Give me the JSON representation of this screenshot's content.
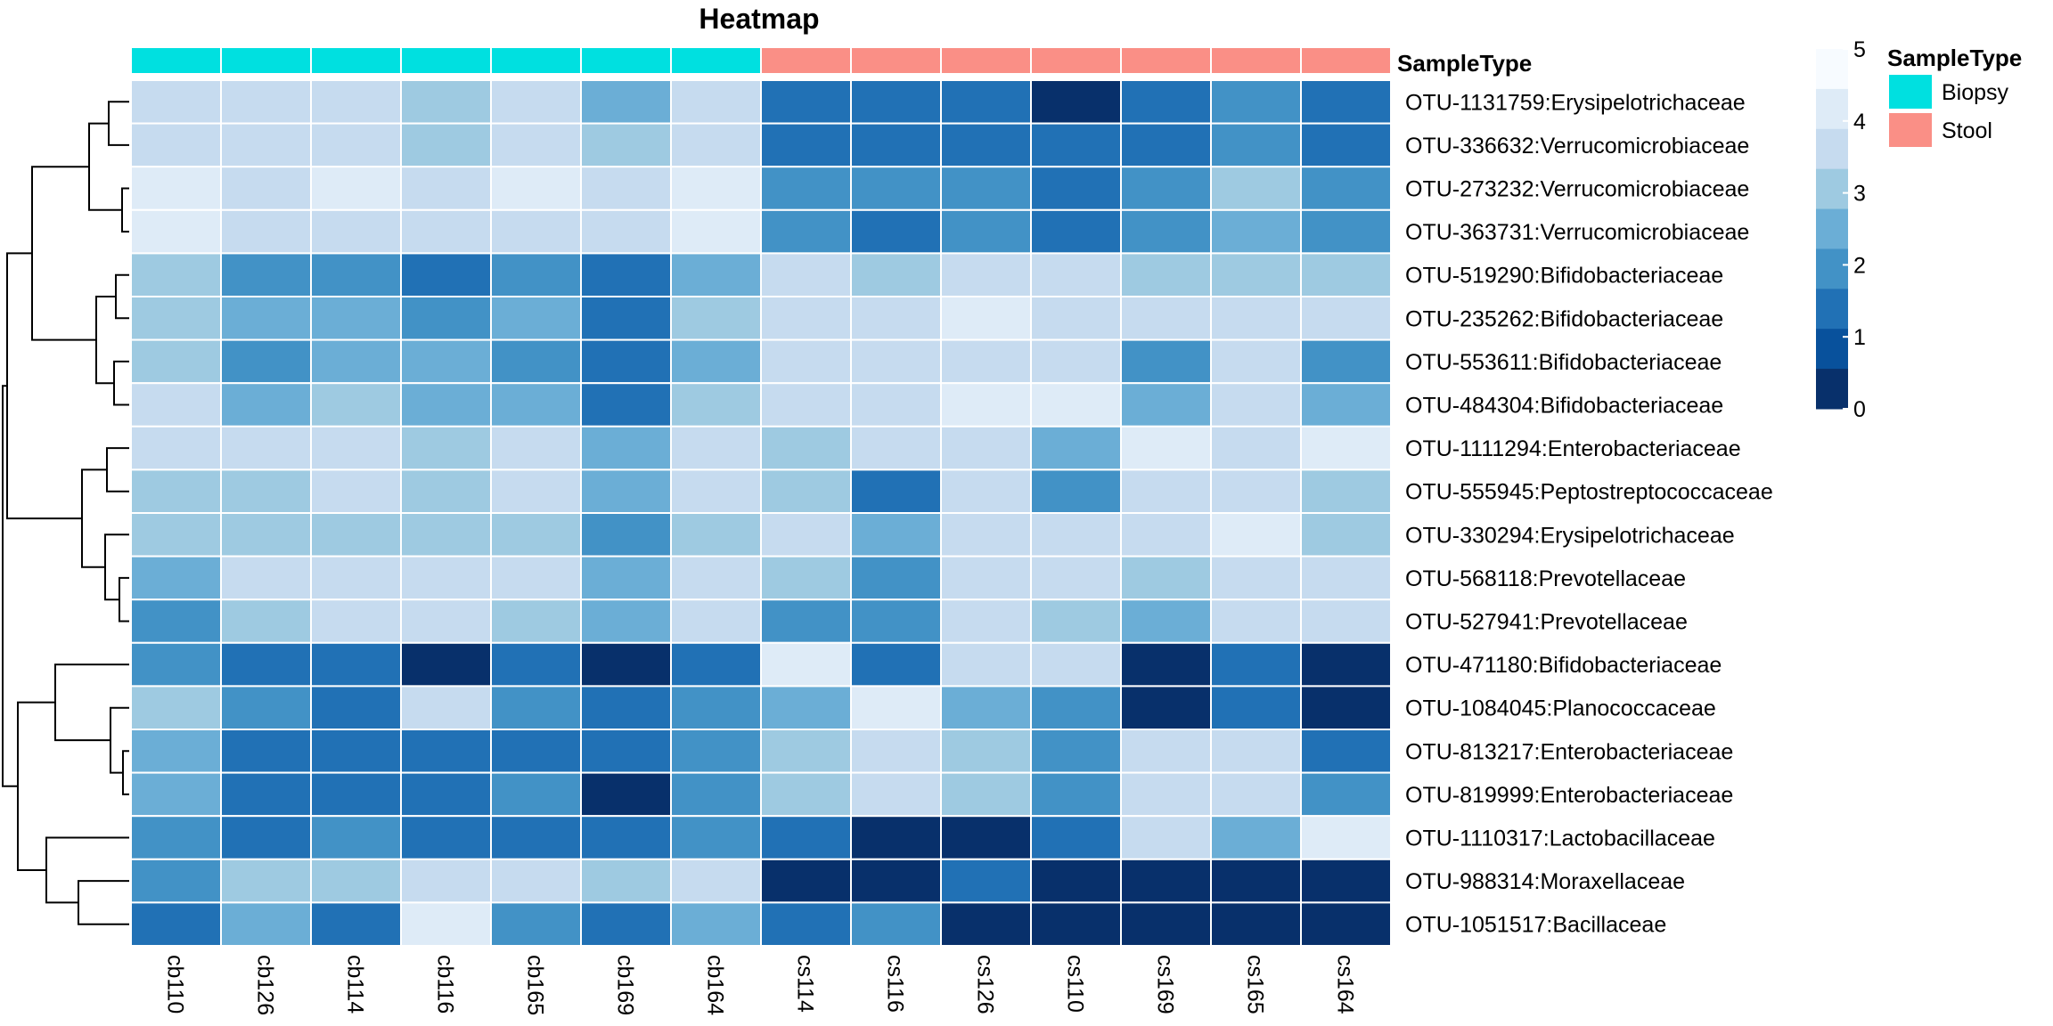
{
  "chart_data": {
    "type": "heatmap",
    "title": "Heatmap",
    "columns": [
      "cb110",
      "cb126",
      "cb114",
      "cb116",
      "cb165",
      "cb169",
      "cb164",
      "cs114",
      "cs116",
      "cs126",
      "cs110",
      "cs169",
      "cs165",
      "cs164"
    ],
    "rows": [
      "OTU-1131759:Erysipelotrichaceae",
      "OTU-336632:Verrucomicrobiaceae",
      "OTU-273232:Verrucomicrobiaceae",
      "OTU-363731:Verrucomicrobiaceae",
      "OTU-519290:Bifidobacteriaceae",
      "OTU-235262:Bifidobacteriaceae",
      "OTU-553611:Bifidobacteriaceae",
      "OTU-484304:Bifidobacteriaceae",
      "OTU-1111294:Enterobacteriaceae",
      "OTU-555945:Peptostreptococcaceae",
      "OTU-330294:Erysipelotrichaceae",
      "OTU-568118:Prevotellaceae",
      "OTU-527941:Prevotellaceae",
      "OTU-471180:Bifidobacteriaceae",
      "OTU-1084045:Planococcaceae",
      "OTU-813217:Enterobacteriaceae",
      "OTU-819999:Enterobacteriaceae",
      "OTU-1110317:Lactobacillaceae",
      "OTU-988314:Moraxellaceae",
      "OTU-1051517:Bacillaceae"
    ],
    "values": [
      [
        3.5,
        3.5,
        3.5,
        3.0,
        3.5,
        2.5,
        4.0,
        1.5,
        1.0,
        1.5,
        0.0,
        1.5,
        2.0,
        1.0
      ],
      [
        4.0,
        3.5,
        3.5,
        3.0,
        3.5,
        3.0,
        3.5,
        1.5,
        1.0,
        1.5,
        1.0,
        1.0,
        2.0,
        1.0
      ],
      [
        4.5,
        4.0,
        4.5,
        4.0,
        4.5,
        3.5,
        4.5,
        2.0,
        2.0,
        2.0,
        1.5,
        2.0,
        3.0,
        2.0
      ],
      [
        4.5,
        4.0,
        4.0,
        4.0,
        4.0,
        3.5,
        4.5,
        2.0,
        1.5,
        2.0,
        1.5,
        2.0,
        2.5,
        2.0
      ],
      [
        3.0,
        2.0,
        2.0,
        1.5,
        2.0,
        1.5,
        2.5,
        3.5,
        3.0,
        4.0,
        4.0,
        3.0,
        3.0,
        3.0
      ],
      [
        3.0,
        2.5,
        2.5,
        2.0,
        2.5,
        1.5,
        3.0,
        3.5,
        3.5,
        4.5,
        4.0,
        3.5,
        3.5,
        3.5
      ],
      [
        3.0,
        2.0,
        2.5,
        2.5,
        2.0,
        1.5,
        2.5,
        3.5,
        3.5,
        4.0,
        4.0,
        2.0,
        3.5,
        2.0
      ],
      [
        3.5,
        2.5,
        3.0,
        2.5,
        2.5,
        1.5,
        3.0,
        4.0,
        4.0,
        4.5,
        4.5,
        2.5,
        4.0,
        2.5
      ],
      [
        3.5,
        3.5,
        3.5,
        3.0,
        3.5,
        2.5,
        3.5,
        3.0,
        4.0,
        3.5,
        2.5,
        4.5,
        4.0,
        4.5
      ],
      [
        3.0,
        3.0,
        3.5,
        3.0,
        3.5,
        2.5,
        3.5,
        3.0,
        1.5,
        3.5,
        2.0,
        4.0,
        3.5,
        3.0
      ],
      [
        3.0,
        3.0,
        3.0,
        3.0,
        3.0,
        2.0,
        3.0,
        3.5,
        2.5,
        3.5,
        4.0,
        3.5,
        4.5,
        3.0
      ],
      [
        2.5,
        3.5,
        3.5,
        3.5,
        3.5,
        2.5,
        3.5,
        3.0,
        2.0,
        3.5,
        3.5,
        3.0,
        4.0,
        3.5
      ],
      [
        2.0,
        3.0,
        3.5,
        3.5,
        3.0,
        2.5,
        3.5,
        2.0,
        2.0,
        3.5,
        3.0,
        2.5,
        3.5,
        3.5
      ],
      [
        2.0,
        1.0,
        1.5,
        0.0,
        1.0,
        0.0,
        1.0,
        4.5,
        1.5,
        4.0,
        3.5,
        0.0,
        1.5,
        0.0
      ],
      [
        3.0,
        2.0,
        1.5,
        4.0,
        2.0,
        1.0,
        2.0,
        2.5,
        4.5,
        2.5,
        2.0,
        0.0,
        1.5,
        0.0
      ],
      [
        2.5,
        1.5,
        1.5,
        1.0,
        1.5,
        1.0,
        2.0,
        3.0,
        4.0,
        3.0,
        2.0,
        3.5,
        4.0,
        1.5
      ],
      [
        2.5,
        1.5,
        1.5,
        1.0,
        2.0,
        0.0,
        2.0,
        3.0,
        4.0,
        3.0,
        2.0,
        3.5,
        3.5,
        2.0
      ],
      [
        2.0,
        1.5,
        2.0,
        1.5,
        1.5,
        1.0,
        2.0,
        1.0,
        0.0,
        0.0,
        1.5,
        3.5,
        2.5,
        4.5
      ],
      [
        2.0,
        3.0,
        3.0,
        4.0,
        3.5,
        3.0,
        4.0,
        0.0,
        0.0,
        1.0,
        0.0,
        0.0,
        0.0,
        0.0
      ],
      [
        1.0,
        2.5,
        1.5,
        4.5,
        2.0,
        1.5,
        2.5,
        1.5,
        2.0,
        0.0,
        0.0,
        0.0,
        0.0,
        0.0
      ]
    ],
    "color_scale": {
      "min": 0,
      "max": 5,
      "ticks": [
        0,
        1,
        2,
        3,
        4,
        5
      ],
      "colors": [
        "#08306b",
        "#08519c",
        "#2171b5",
        "#4292c6",
        "#6baed6",
        "#9ecae1",
        "#c6dbef",
        "#deebf7",
        "#f7fbff"
      ]
    },
    "annotation": {
      "name": "SampleType",
      "values": [
        "Biopsy",
        "Biopsy",
        "Biopsy",
        "Biopsy",
        "Biopsy",
        "Biopsy",
        "Biopsy",
        "Stool",
        "Stool",
        "Stool",
        "Stool",
        "Stool",
        "Stool",
        "Stool"
      ],
      "levels": [
        {
          "label": "Biopsy",
          "color": "#00e0e0"
        },
        {
          "label": "Stool",
          "color": "#fa8f86"
        }
      ]
    },
    "row_dendrogram": true,
    "grid": true
  }
}
